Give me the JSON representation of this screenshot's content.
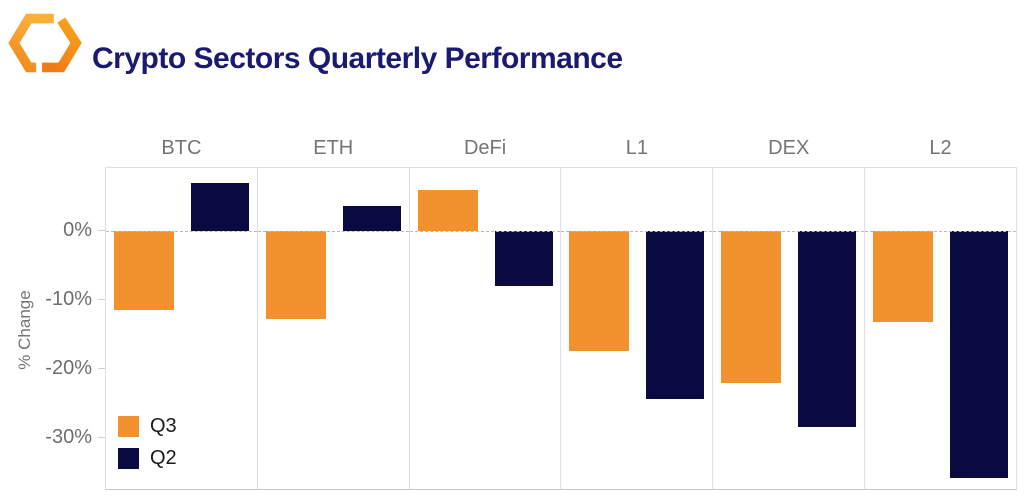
{
  "header": {
    "title": "Crypto Sectors Quarterly Performance",
    "logo_icon": "hexagon-brand-logo-icon"
  },
  "colors": {
    "title": "#1A1A70",
    "axis_text": "#757575",
    "legend_text": "#1A1A1A",
    "panel_border": "#E0E0E0",
    "zero_line": "#B9B9B9",
    "q3_orange": "#F1922F",
    "q2_navy": "#0A0A41"
  },
  "chart_data": {
    "type": "bar",
    "layout": "faceted-grouped",
    "title": "Crypto Sectors Quarterly Performance",
    "xlabel": "",
    "ylabel": "% Change",
    "categories": [
      "BTC",
      "ETH",
      "DeFi",
      "L1",
      "DEX",
      "L2"
    ],
    "series": [
      {
        "name": "Q3",
        "color": "#F1922F",
        "values": [
          -11.5,
          -12.8,
          5.9,
          -17.4,
          -22.0,
          -13.2
        ]
      },
      {
        "name": "Q2",
        "color": "#0A0A41",
        "values": [
          7.0,
          3.6,
          -8.0,
          -24.3,
          -28.4,
          -35.8
        ]
      }
    ],
    "yticks": [
      {
        "value": 0,
        "label": "0%"
      },
      {
        "value": -10,
        "label": "-10%"
      },
      {
        "value": -20,
        "label": "-20%"
      },
      {
        "value": -30,
        "label": "-30%"
      }
    ],
    "ylim": [
      -37.8,
      9.1
    ],
    "grid": false,
    "zero_line": "dashed",
    "legend_position": "bottom-left-first-panel"
  }
}
